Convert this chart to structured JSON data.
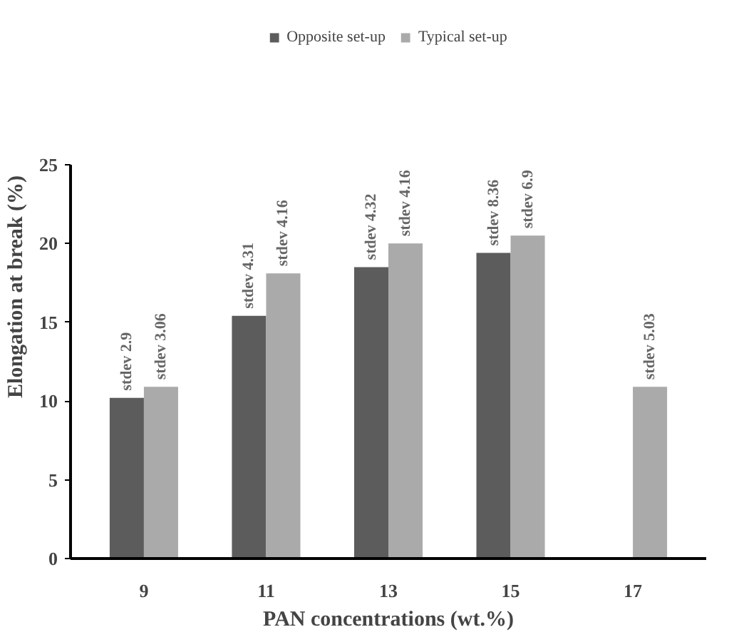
{
  "chart_data": {
    "type": "bar",
    "xlabel": "PAN concentrations (wt.%)",
    "ylabel": "Elongation at break (%)",
    "categories": [
      "9",
      "11",
      "13",
      "15",
      "17"
    ],
    "series": [
      {
        "name": "Opposite set-up",
        "color": "#5c5c5c",
        "values": [
          10.2,
          15.4,
          18.5,
          19.4,
          null
        ],
        "value_labels": [
          "stdev 2.9",
          "stdev 4.31",
          "stdev 4.32",
          "stdev 8.36",
          null
        ]
      },
      {
        "name": "Typical set-up",
        "color": "#aaaaaa",
        "values": [
          10.9,
          18.1,
          20.0,
          20.5,
          10.9
        ],
        "value_labels": [
          "stdev 3.06",
          "stdev 4.16",
          "stdev 4.16",
          "stdev 6.9",
          "stdev 5.03"
        ]
      }
    ],
    "ylim": [
      0,
      25
    ],
    "yticks": [
      0,
      5,
      10,
      15,
      20,
      25
    ],
    "grid": false,
    "legend": "top"
  }
}
